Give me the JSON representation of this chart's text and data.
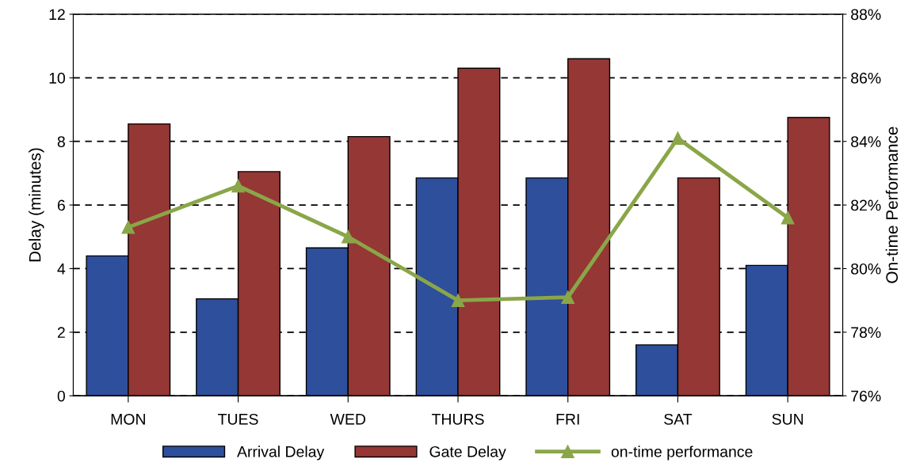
{
  "chart_data": {
    "type": "bar",
    "ylabel": "Delay (minutes)",
    "y2label": "On-time Performance",
    "categories": [
      "MON",
      "TUES",
      "WED",
      "THURS",
      "FRI",
      "SAT",
      "SUN"
    ],
    "series": [
      {
        "name": "Arrival Delay",
        "color": "#2e4f9b",
        "values": [
          4.4,
          3.05,
          4.65,
          6.85,
          6.85,
          1.6,
          4.1
        ]
      },
      {
        "name": "Gate Delay",
        "color": "#953735",
        "values": [
          8.55,
          7.05,
          8.15,
          10.3,
          10.6,
          6.85,
          8.75
        ]
      },
      {
        "name": "on-time performance",
        "type": "line",
        "axis": "y2",
        "color": "#8aa648",
        "marker": "triangle",
        "values": [
          81.3,
          82.6,
          81.0,
          79.0,
          79.1,
          84.1,
          81.6
        ]
      }
    ],
    "ylim": [
      0,
      12
    ],
    "yticks": [
      0,
      2,
      4,
      6,
      8,
      10,
      12
    ],
    "y2lim": [
      76,
      88
    ],
    "y2ticks": [
      {
        "value": 76,
        "label": "76%"
      },
      {
        "value": 78,
        "label": "78%"
      },
      {
        "value": 80,
        "label": "80%"
      },
      {
        "value": 82,
        "label": "82%"
      },
      {
        "value": 84,
        "label": "84%"
      },
      {
        "value": 86,
        "label": "86%"
      },
      {
        "value": 88,
        "label": "88%"
      }
    ],
    "grid": "y",
    "legend": "bottom"
  }
}
